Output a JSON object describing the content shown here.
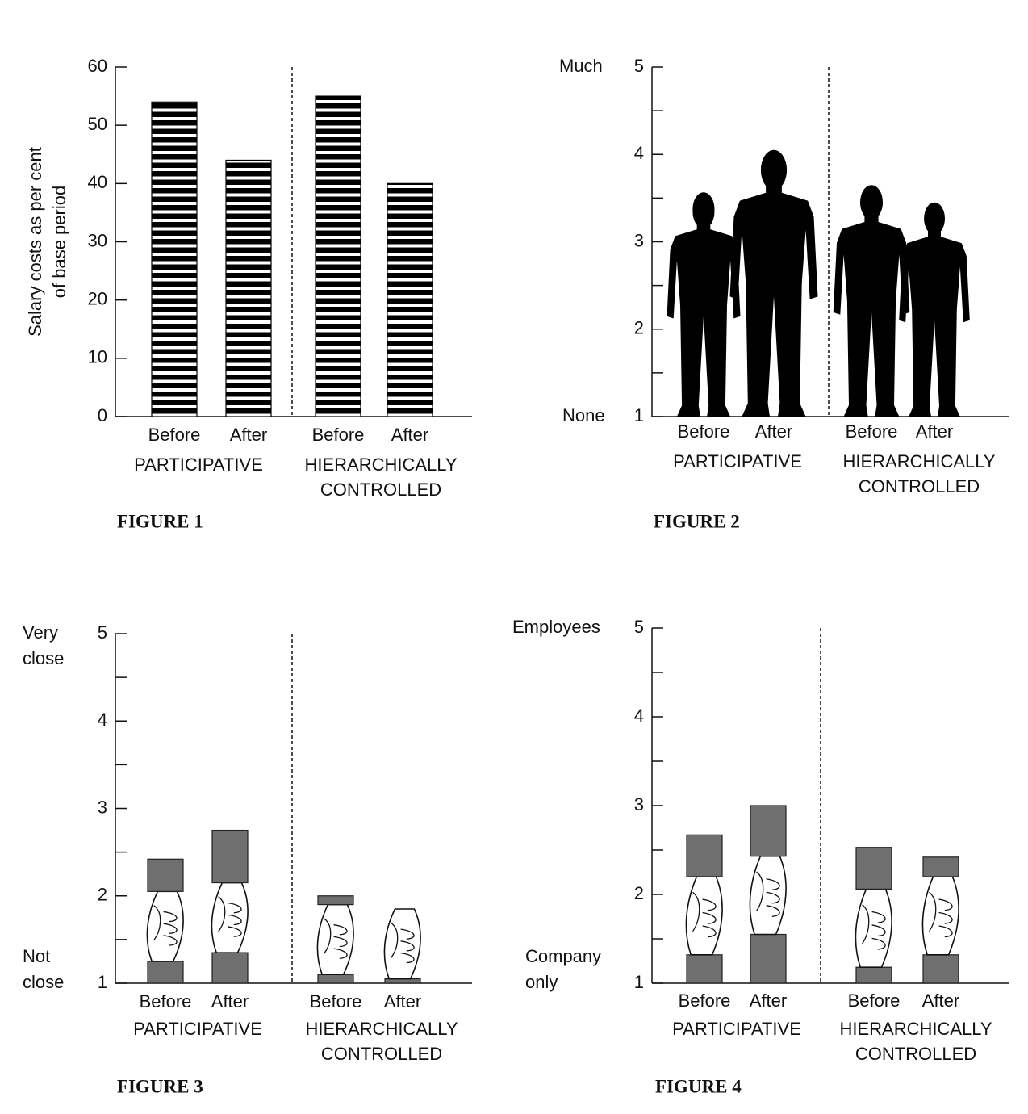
{
  "chart_data": [
    {
      "type": "coin_bar",
      "title": "FIGURE 1",
      "y_label": "Salary costs as per cent of base period",
      "categories": [
        "Before",
        "After",
        "Before",
        "After"
      ],
      "groups": [
        "PARTICIPATIVE",
        "HIERARCHICALLY CONTROLLED"
      ],
      "values": [
        54,
        44,
        55,
        40
      ],
      "ylim": [
        0,
        60
      ],
      "yticks": [
        0,
        10,
        20,
        30,
        40,
        50,
        60
      ]
    },
    {
      "type": "people",
      "title": "FIGURE 2",
      "y_top_label": "Much",
      "y_bottom_label": "None",
      "categories": [
        "Before",
        "After",
        "Before",
        "After"
      ],
      "groups": [
        "PARTICIPATIVE",
        "HIERARCHICALLY CONTROLLED"
      ],
      "values": [
        3.55,
        4.05,
        3.65,
        3.45
      ],
      "ylim": [
        1,
        5
      ],
      "yticks": [
        1,
        2,
        3,
        4,
        5
      ],
      "minor_yticks": [
        1.5,
        2.5,
        3.5,
        4.5
      ]
    },
    {
      "type": "handshake",
      "title": "FIGURE 3",
      "y_top_label": "Very close",
      "y_bottom_label": "Not close",
      "categories": [
        "Before",
        "After",
        "Before",
        "After"
      ],
      "groups": [
        "PARTICIPATIVE",
        "HIERARCHICALLY CONTROLLED"
      ],
      "values": [
        2.42,
        2.75,
        2.0,
        1.85
      ],
      "bases": [
        1.25,
        1.35,
        1.1,
        1.05
      ],
      "ylim": [
        1,
        5
      ],
      "yticks": [
        1,
        2,
        3,
        4,
        5
      ],
      "minor_yticks": [
        1.5,
        2.5,
        3.5,
        4.5
      ]
    },
    {
      "type": "handshake",
      "title": "FIGURE 4",
      "y_top_label": "Employees",
      "y_bottom_label": "Company only",
      "categories": [
        "Before",
        "After",
        "Before",
        "After"
      ],
      "groups": [
        "PARTICIPATIVE",
        "HIERARCHICALLY CONTROLLED"
      ],
      "values": [
        2.67,
        3.0,
        2.53,
        2.42
      ],
      "bases": [
        1.32,
        1.55,
        1.18,
        1.32
      ],
      "ylim": [
        1,
        5
      ],
      "yticks": [
        1,
        2,
        3,
        4,
        5
      ],
      "minor_yticks": [
        1.5,
        2.5,
        3.5,
        4.5
      ]
    }
  ]
}
